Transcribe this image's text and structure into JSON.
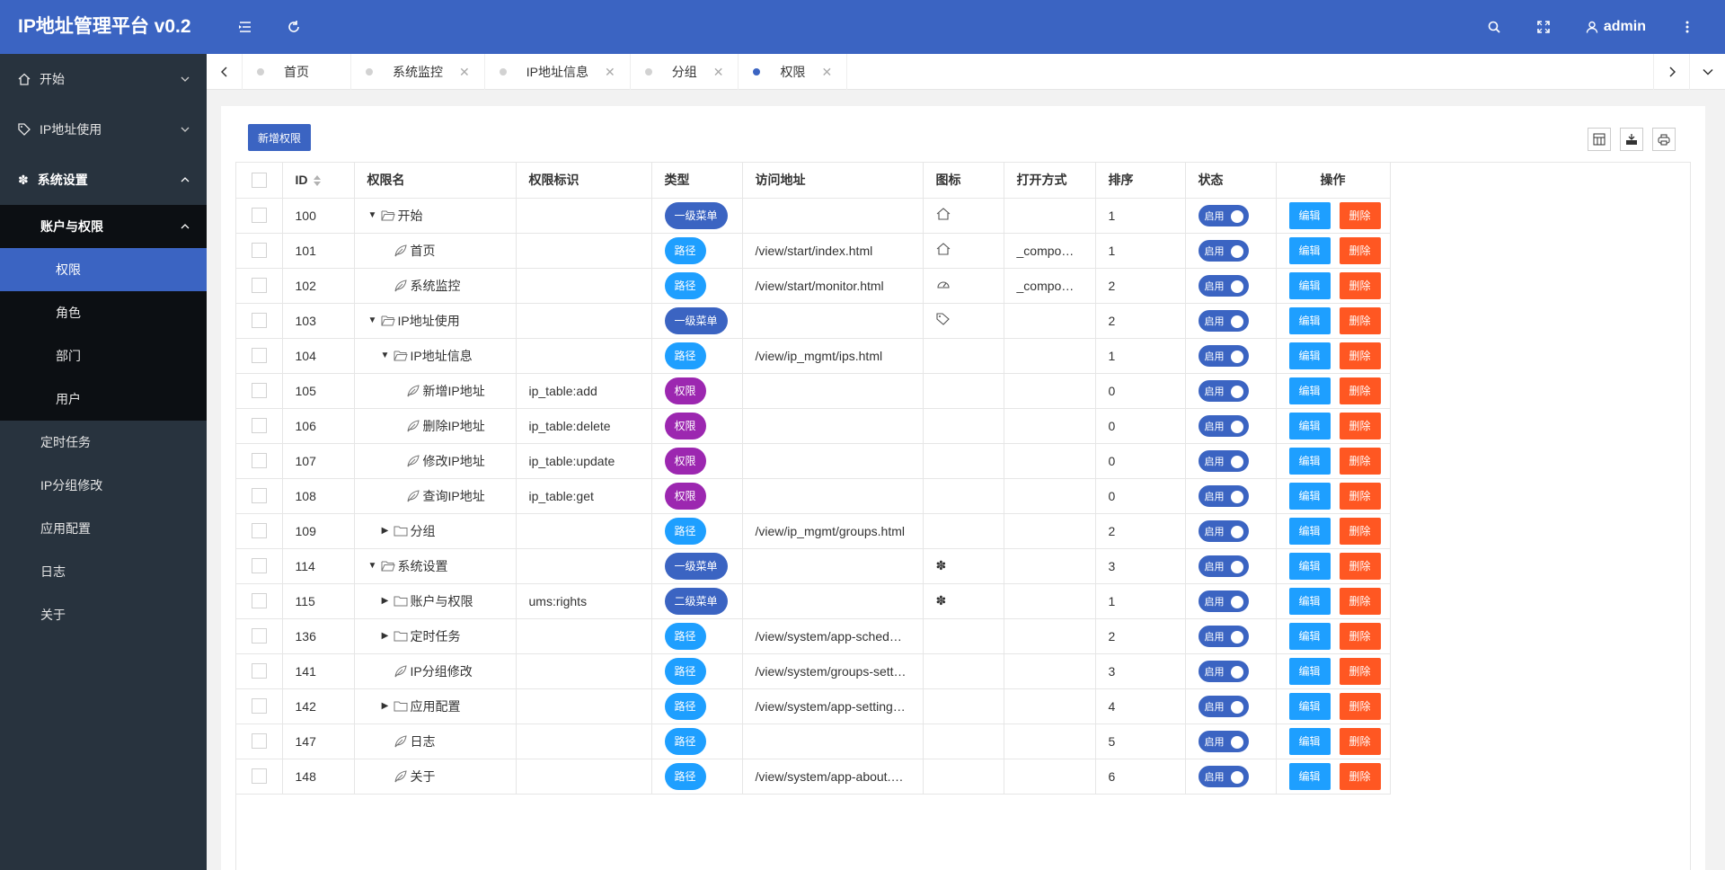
{
  "app": {
    "title": "IP地址管理平台 v0.2",
    "user": "admin"
  },
  "colors": {
    "primary": "#3b64c2",
    "sidebar": "#28333e",
    "sidebar_sub": "#0c0f13",
    "edit": "#1e9fff",
    "delete": "#ff5722",
    "lvl_badge": "#3b64c2",
    "path_badge": "#1e9fff",
    "perm_badge": "#9c27b0"
  },
  "header_icons": [
    "menu-toggle-icon",
    "refresh-icon",
    "search-icon",
    "fullscreen-icon",
    "user-icon",
    "more-icon"
  ],
  "sidebar": {
    "start": "开始",
    "ip_usage": "IP地址使用",
    "settings": "系统设置",
    "account": "账户与权限",
    "account_items": [
      "权限",
      "角色",
      "部门",
      "用户"
    ],
    "scheduled": "定时任务",
    "ip_group": "IP分组修改",
    "app_config": "应用配置",
    "log": "日志",
    "about": "关于"
  },
  "tabs": [
    "首页",
    "系统监控",
    "IP地址信息",
    "分组",
    "权限"
  ],
  "toolbar": {
    "add_label": "新增权限"
  },
  "table": {
    "headers": {
      "id": "ID",
      "name": "权限名",
      "key": "权限标识",
      "type": "类型",
      "url": "访问地址",
      "icon": "图标",
      "open": "打开方式",
      "order": "排序",
      "status": "状态",
      "ops": "操作"
    },
    "switch_label": "启用",
    "edit_label": "编辑",
    "delete_label": "删除",
    "rows": [
      {
        "id": "100",
        "name": "开始",
        "depth": 0,
        "node": "open",
        "key": "",
        "type": "一级菜单",
        "tkind": "lvl",
        "url": "",
        "icon": "home",
        "open": "",
        "order": "1"
      },
      {
        "id": "101",
        "name": "首页",
        "depth": 1,
        "node": "leaf",
        "key": "",
        "type": "路径",
        "tkind": "path",
        "url": "/view/start/index.html",
        "icon": "home",
        "open": "_compo…",
        "order": "1"
      },
      {
        "id": "102",
        "name": "系统监控",
        "depth": 1,
        "node": "leaf",
        "key": "",
        "type": "路径",
        "tkind": "path",
        "url": "/view/start/monitor.html",
        "icon": "gauge",
        "open": "_compo…",
        "order": "2"
      },
      {
        "id": "103",
        "name": "IP地址使用",
        "depth": 0,
        "node": "open",
        "key": "",
        "type": "一级菜单",
        "tkind": "lvl",
        "url": "",
        "icon": "tag",
        "open": "",
        "order": "2"
      },
      {
        "id": "104",
        "name": "IP地址信息",
        "depth": 1,
        "node": "open",
        "key": "",
        "type": "路径",
        "tkind": "path",
        "url": "/view/ip_mgmt/ips.html",
        "icon": "",
        "open": "",
        "order": "1"
      },
      {
        "id": "105",
        "name": "新增IP地址",
        "depth": 2,
        "node": "leaf",
        "key": "ip_table:add",
        "type": "权限",
        "tkind": "perm",
        "url": "",
        "icon": "",
        "open": "",
        "order": "0"
      },
      {
        "id": "106",
        "name": "删除IP地址",
        "depth": 2,
        "node": "leaf",
        "key": "ip_table:delete",
        "type": "权限",
        "tkind": "perm",
        "url": "",
        "icon": "",
        "open": "",
        "order": "0"
      },
      {
        "id": "107",
        "name": "修改IP地址",
        "depth": 2,
        "node": "leaf",
        "key": "ip_table:update",
        "type": "权限",
        "tkind": "perm",
        "url": "",
        "icon": "",
        "open": "",
        "order": "0"
      },
      {
        "id": "108",
        "name": "查询IP地址",
        "depth": 2,
        "node": "leaf",
        "key": "ip_table:get",
        "type": "权限",
        "tkind": "perm",
        "url": "",
        "icon": "",
        "open": "",
        "order": "0"
      },
      {
        "id": "109",
        "name": "分组",
        "depth": 1,
        "node": "closed",
        "key": "",
        "type": "路径",
        "tkind": "path",
        "url": "/view/ip_mgmt/groups.html",
        "icon": "",
        "open": "",
        "order": "2"
      },
      {
        "id": "114",
        "name": "系统设置",
        "depth": 0,
        "node": "open",
        "key": "",
        "type": "一级菜单",
        "tkind": "lvl",
        "url": "",
        "icon": "gear",
        "open": "",
        "order": "3"
      },
      {
        "id": "115",
        "name": "账户与权限",
        "depth": 1,
        "node": "closed",
        "key": "ums:rights",
        "type": "二级菜单",
        "tkind": "lvl",
        "url": "",
        "icon": "gear",
        "open": "",
        "order": "1"
      },
      {
        "id": "136",
        "name": "定时任务",
        "depth": 1,
        "node": "closed",
        "key": "",
        "type": "路径",
        "tkind": "path",
        "url": "/view/system/app-sched…",
        "icon": "",
        "open": "",
        "order": "2"
      },
      {
        "id": "141",
        "name": "IP分组修改",
        "depth": 1,
        "node": "leaf",
        "key": "",
        "type": "路径",
        "tkind": "path",
        "url": "/view/system/groups-sett…",
        "icon": "",
        "open": "",
        "order": "3"
      },
      {
        "id": "142",
        "name": "应用配置",
        "depth": 1,
        "node": "closed",
        "key": "",
        "type": "路径",
        "tkind": "path",
        "url": "/view/system/app-setting…",
        "icon": "",
        "open": "",
        "order": "4"
      },
      {
        "id": "147",
        "name": "日志",
        "depth": 1,
        "node": "leaf",
        "key": "",
        "type": "路径",
        "tkind": "path",
        "url": "",
        "icon": "",
        "open": "",
        "order": "5"
      },
      {
        "id": "148",
        "name": "关于",
        "depth": 1,
        "node": "leaf",
        "key": "",
        "type": "路径",
        "tkind": "path",
        "url": "/view/system/app-about.…",
        "icon": "",
        "open": "",
        "order": "6"
      }
    ]
  }
}
